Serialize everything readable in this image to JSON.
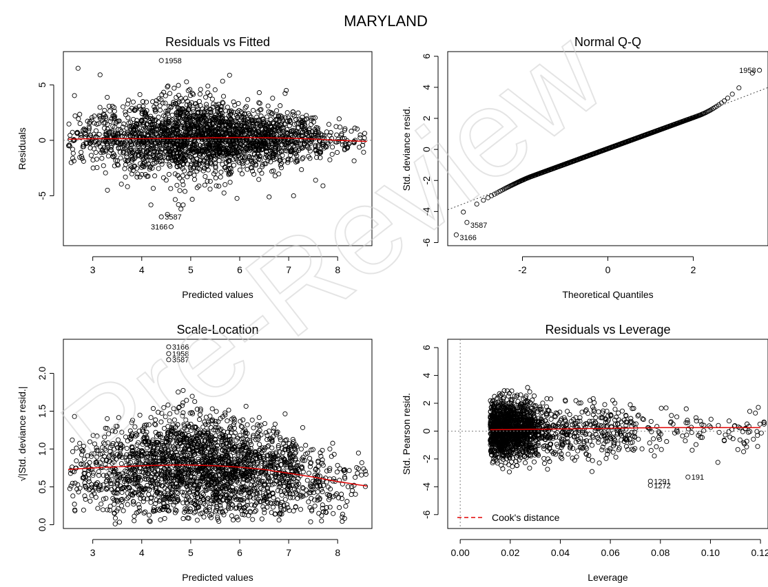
{
  "figure": {
    "title": "MARYLAND",
    "watermark": "Pre-Review"
  },
  "colors": {
    "points": "#000000",
    "smooth": "#e00000",
    "reference": "#7f7f7f",
    "background": "#ffffff"
  },
  "chart_data": [
    {
      "id": "resid-fitted",
      "type": "scatter",
      "title": "Residuals vs Fitted",
      "xlabel": "Predicted values",
      "ylabel": "Residuals",
      "xlim": [
        2.4,
        8.7
      ],
      "ylim": [
        -9.5,
        8.0
      ],
      "xticks": [
        3,
        4,
        5,
        6,
        7,
        8
      ],
      "yticks": [
        -5,
        0,
        5
      ],
      "reference_line": {
        "y": 0,
        "style": "dotted"
      },
      "smooth": {
        "x": [
          2.5,
          3.0,
          4.0,
          5.0,
          6.0,
          7.0,
          7.6,
          8.0,
          8.6
        ],
        "y": [
          0.1,
          0.15,
          0.15,
          0.2,
          0.25,
          0.2,
          0.1,
          0.0,
          -0.1
        ]
      },
      "labeled_points": [
        {
          "label": "1958",
          "x": 4.4,
          "y": 7.2
        },
        {
          "label": "3587",
          "x": 4.4,
          "y": -6.9
        },
        {
          "label": "3166",
          "x": 4.6,
          "y": -7.8
        }
      ],
      "outliers": [
        {
          "x": 2.7,
          "y": 6.5
        },
        {
          "x": 3.15,
          "y": 5.9
        },
        {
          "x": 5.35,
          "y": 4.9
        },
        {
          "x": 6.95,
          "y": 4.5
        },
        {
          "x": 6.4,
          "y": 4.3
        },
        {
          "x": 7.1,
          "y": -5.0
        },
        {
          "x": 4.75,
          "y": -5.8
        },
        {
          "x": 4.8,
          "y": -6.2
        },
        {
          "x": 7.55,
          "y": -3.6
        },
        {
          "x": 7.7,
          "y": -4.1
        },
        {
          "x": 6.6,
          "y": -5.1
        },
        {
          "x": 3.3,
          "y": -4.5
        }
      ],
      "cloud": {
        "x_min": 2.5,
        "x_max": 8.6,
        "n": 2400
      }
    },
    {
      "id": "normal-qq",
      "type": "scatter",
      "title": "Normal Q-Q",
      "xlabel": "Theoretical Quantiles",
      "ylabel": "Std. deviance resid.",
      "xlim": [
        -3.75,
        3.75
      ],
      "ylim": [
        -6.2,
        6.3
      ],
      "xticks": [
        -2,
        0,
        2
      ],
      "yticks": [
        -6,
        -4,
        -2,
        0,
        2,
        4,
        6
      ],
      "qq_line": {
        "slope": 1.05,
        "intercept": 0.05,
        "style": "dotted"
      },
      "labeled_points": [
        {
          "label": "1958",
          "x": 3.55,
          "y": 5.1
        },
        {
          "label": "3587",
          "x": -3.3,
          "y": -4.7
        },
        {
          "label": "3166",
          "x": -3.55,
          "y": -5.5
        }
      ],
      "n": 1400
    },
    {
      "id": "scale-location",
      "type": "scatter",
      "title": "Scale-Location",
      "xlabel": "Predicted values",
      "ylabel": "√|Std. deviance resid.|",
      "xlim": [
        2.4,
        8.7
      ],
      "ylim": [
        -0.05,
        2.45
      ],
      "xticks": [
        3,
        4,
        5,
        6,
        7,
        8
      ],
      "yticks": [
        0.0,
        0.5,
        1.0,
        1.5,
        2.0
      ],
      "ytick_labels": [
        "0.0",
        "0.5",
        "1.0",
        "1.5",
        "2.0"
      ],
      "smooth": {
        "x": [
          2.5,
          3.0,
          4.0,
          4.8,
          5.5,
          6.0,
          6.5,
          7.0,
          7.5,
          8.0,
          8.6
        ],
        "y": [
          0.73,
          0.75,
          0.78,
          0.79,
          0.78,
          0.76,
          0.73,
          0.68,
          0.63,
          0.57,
          0.51
        ]
      },
      "labeled_points": [
        {
          "label": "3166",
          "x": 4.55,
          "y": 2.35
        },
        {
          "label": "1958",
          "x": 4.55,
          "y": 2.26
        },
        {
          "label": "3587",
          "x": 4.55,
          "y": 2.18
        }
      ],
      "cloud": {
        "x_min": 2.5,
        "x_max": 8.6,
        "n": 2400
      }
    },
    {
      "id": "resid-leverage",
      "type": "scatter",
      "title": "Residuals vs Leverage",
      "xlabel": "Leverage",
      "ylabel": "Std. Pearson resid.",
      "xlim": [
        -0.005,
        0.123
      ],
      "ylim": [
        -7.0,
        6.6
      ],
      "xticks": [
        0.0,
        0.02,
        0.04,
        0.06,
        0.08,
        0.1,
        0.12
      ],
      "xtick_labels": [
        "0.00",
        "0.02",
        "0.04",
        "0.06",
        "0.08",
        "0.10",
        "0.12"
      ],
      "yticks": [
        -6,
        -4,
        -2,
        0,
        2,
        4,
        6
      ],
      "smooth": {
        "x": [
          0.012,
          0.04,
          0.08,
          0.12
        ],
        "y": [
          0.1,
          0.15,
          0.25,
          0.25
        ]
      },
      "legend": {
        "label": "Cook's distance",
        "position": "bottom-left",
        "style": "dashed"
      },
      "labeled_points": [
        {
          "label": "1291",
          "x": 0.076,
          "y": -3.6
        },
        {
          "label": "1272",
          "x": 0.076,
          "y": -3.9
        },
        {
          "label": "191",
          "x": 0.091,
          "y": -3.3
        }
      ],
      "cloud": {
        "x_min": 0.012,
        "x_max": 0.122,
        "n": 1800
      }
    }
  ]
}
